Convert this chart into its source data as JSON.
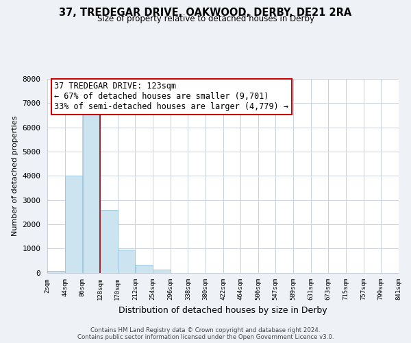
{
  "title": "37, TREDEGAR DRIVE, OAKWOOD, DERBY, DE21 2RA",
  "subtitle": "Size of property relative to detached houses in Derby",
  "xlabel": "Distribution of detached houses by size in Derby",
  "ylabel": "Number of detached properties",
  "footnote1": "Contains HM Land Registry data © Crown copyright and database right 2024.",
  "footnote2": "Contains public sector information licensed under the Open Government Licence v3.0.",
  "bin_edges": [
    2,
    44,
    86,
    128,
    170,
    212,
    254,
    296,
    338,
    380,
    422,
    464,
    506,
    547,
    589,
    631,
    673,
    715,
    757,
    799,
    841
  ],
  "bin_labels": [
    "2sqm",
    "44sqm",
    "86sqm",
    "128sqm",
    "170sqm",
    "212sqm",
    "254sqm",
    "296sqm",
    "338sqm",
    "380sqm",
    "422sqm",
    "464sqm",
    "506sqm",
    "547sqm",
    "589sqm",
    "631sqm",
    "673sqm",
    "715sqm",
    "757sqm",
    "799sqm",
    "841sqm"
  ],
  "counts": [
    60,
    4000,
    6600,
    2600,
    960,
    330,
    130,
    0,
    0,
    0,
    0,
    0,
    0,
    0,
    0,
    0,
    0,
    0,
    0,
    0
  ],
  "bar_color": "#cce3f0",
  "bar_edge_color": "#a0c8e0",
  "property_line_x": 128,
  "property_line_color": "#aa0000",
  "annotation_title": "37 TREDEGAR DRIVE: 123sqm",
  "annotation_line1": "← 67% of detached houses are smaller (9,701)",
  "annotation_line2": "33% of semi-detached houses are larger (4,779) →",
  "ylim": [
    0,
    8000
  ],
  "yticks": [
    0,
    1000,
    2000,
    3000,
    4000,
    5000,
    6000,
    7000,
    8000
  ],
  "background_color": "#eef2f7",
  "plot_background": "#ffffff",
  "grid_color": "#c8d0dc"
}
